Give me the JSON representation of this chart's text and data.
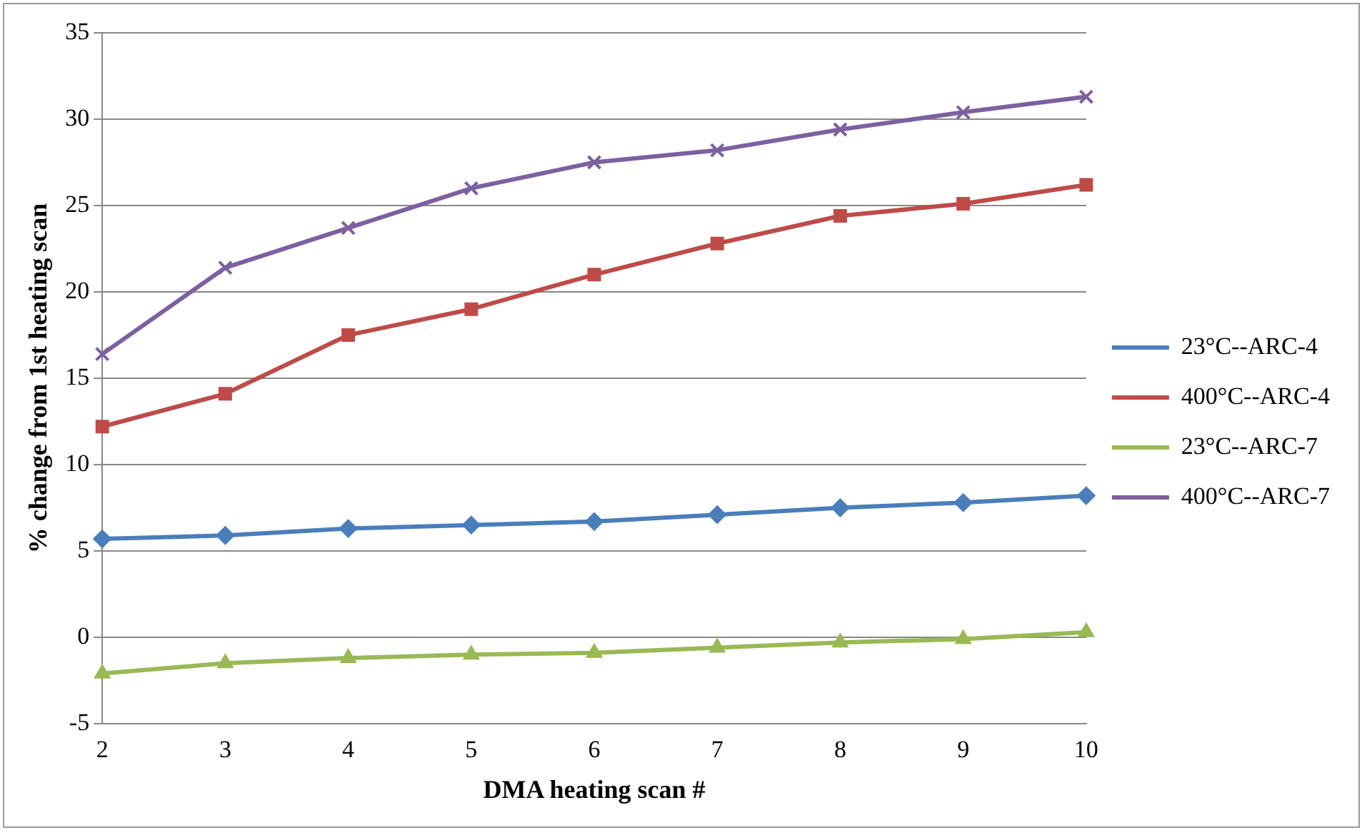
{
  "chart_data": {
    "type": "line",
    "xlabel": "DMA heating scan #",
    "ylabel": "% change from 1st heating scan",
    "categories": [
      "2",
      "3",
      "4",
      "5",
      "6",
      "7",
      "8",
      "9",
      "10"
    ],
    "series": [
      {
        "name": "23°C--ARC-4",
        "color": "#4a7ebb",
        "marker": "diamond",
        "values": [
          5.7,
          5.9,
          6.3,
          6.5,
          6.7,
          7.1,
          7.5,
          7.8,
          8.2
        ]
      },
      {
        "name": "400°C--ARC-4",
        "color": "#be4b48",
        "marker": "square",
        "values": [
          12.2,
          14.1,
          17.5,
          19,
          21,
          22.8,
          24.4,
          25.1,
          26.2
        ]
      },
      {
        "name": "23°C--ARC-7",
        "color": "#98b954",
        "marker": "triangle",
        "values": [
          -2.1,
          -1.5,
          -1.2,
          -1,
          -0.9,
          -0.6,
          -0.3,
          -0.1,
          0.3
        ]
      },
      {
        "name": "400°C--ARC-7",
        "color": "#7d60a0",
        "marker": "cross",
        "values": [
          16.4,
          21.4,
          23.7,
          26,
          27.5,
          28.2,
          29.4,
          30.4,
          31.3
        ]
      }
    ],
    "ylim": [
      -5,
      35
    ],
    "yticks": [
      -5,
      0,
      5,
      10,
      15,
      20,
      25,
      30,
      35
    ],
    "grid": "y",
    "legend": "right"
  }
}
